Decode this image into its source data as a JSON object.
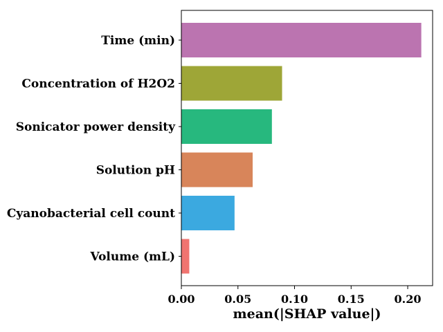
{
  "chart_data": {
    "type": "bar",
    "orientation": "horizontal",
    "title": "",
    "xlabel": "mean(|SHAP value|)",
    "ylabel": "",
    "xlim": [
      0,
      0.222
    ],
    "xticks": [
      0.0,
      0.05,
      0.1,
      0.15,
      0.2
    ],
    "xtick_labels": [
      "0.00",
      "0.05",
      "0.10",
      "0.15",
      "0.20"
    ],
    "grid": false,
    "legend": "none",
    "categories": [
      "Time (min)",
      "Concentration of H2O2",
      "Sonicator power density",
      "Solution pH",
      "Cyanobacterial cell count",
      "Volume (mL)"
    ],
    "values": [
      0.212,
      0.089,
      0.08,
      0.063,
      0.047,
      0.007
    ],
    "colors": [
      "#bb74b0",
      "#9ea637",
      "#27b87e",
      "#d8855a",
      "#3ba9e0",
      "#f07470"
    ]
  }
}
